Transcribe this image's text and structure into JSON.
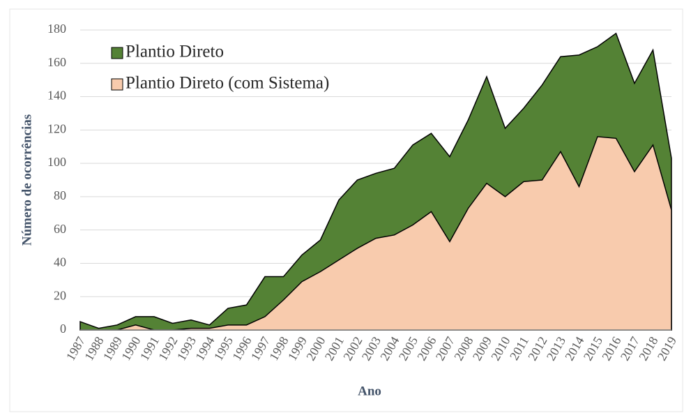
{
  "chart_data": {
    "type": "area",
    "x_label": "Ano",
    "y_label": "Número de ocorrências",
    "categories": [
      "1987",
      "1988",
      "1989",
      "1990",
      "1991",
      "1992",
      "1993",
      "1994",
      "1995",
      "1996",
      "1997",
      "1998",
      "1999",
      "2000",
      "2001",
      "2002",
      "2003",
      "2004",
      "2005",
      "2006",
      "2007",
      "2008",
      "2009",
      "2010",
      "2011",
      "2012",
      "2013",
      "2014",
      "2015",
      "2016",
      "2017",
      "2018",
      "2019"
    ],
    "series": [
      {
        "name": "Plantio Direto",
        "color": "#548235",
        "values": [
          5,
          1,
          3,
          8,
          8,
          4,
          6,
          3,
          13,
          15,
          32,
          32,
          45,
          54,
          78,
          90,
          94,
          97,
          111,
          118,
          104,
          126,
          152,
          121,
          133,
          147,
          164,
          165,
          170,
          178,
          148,
          168,
          103
        ]
      },
      {
        "name": "Plantio Direto (com Sistema)",
        "color": "#f8cbad",
        "values": [
          0,
          0,
          0,
          3,
          0,
          0,
          1,
          1,
          3,
          3,
          8,
          18,
          29,
          35,
          42,
          49,
          55,
          57,
          63,
          71,
          53,
          73,
          88,
          80,
          89,
          90,
          107,
          86,
          116,
          115,
          95,
          111,
          72
        ]
      }
    ],
    "ylim": [
      0,
      180
    ],
    "yticks": [
      0,
      20,
      40,
      60,
      80,
      100,
      120,
      140,
      160,
      180
    ],
    "grid": true
  }
}
